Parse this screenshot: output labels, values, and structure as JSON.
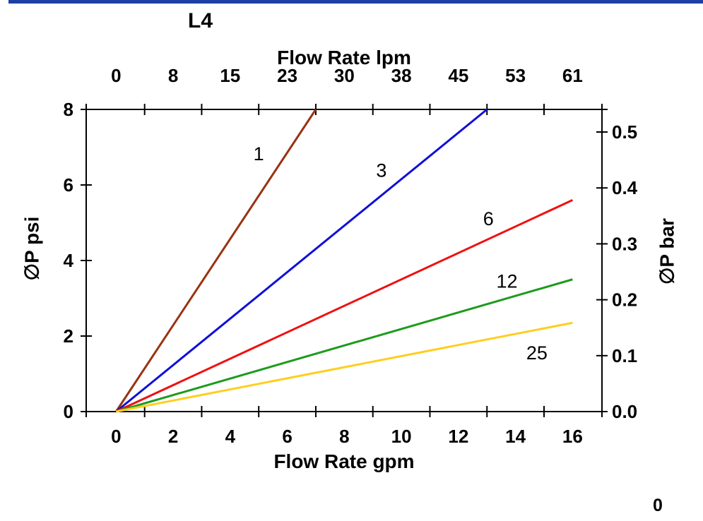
{
  "page": {
    "accent_bar_color": "#1E3FA3",
    "footer_number": "0"
  },
  "chart_data": {
    "type": "line",
    "title": "L4",
    "legend": "off",
    "grid": "off",
    "axes": {
      "top": {
        "title": "Flow Rate lpm",
        "tick_labels": [
          "0",
          "8",
          "15",
          "23",
          "30",
          "38",
          "45",
          "53",
          "61"
        ]
      },
      "bottom": {
        "title": "Flow Rate gpm",
        "tick_labels": [
          "0",
          "2",
          "4",
          "6",
          "8",
          "10",
          "12",
          "14",
          "16"
        ],
        "tick_label_values_gpm": [
          0,
          2,
          4,
          6,
          8,
          10,
          12,
          14,
          16
        ],
        "tick_marks_gpm": [
          1,
          3,
          5,
          7,
          9,
          11,
          13,
          15
        ],
        "range_gpm": [
          0,
          16
        ]
      },
      "left": {
        "title": "∅P psi",
        "tick_labels": [
          "0",
          "2",
          "4",
          "6",
          "8"
        ],
        "tick_values_psi": [
          0,
          2,
          4,
          6,
          8
        ],
        "range_psi": [
          0,
          8
        ]
      },
      "right": {
        "title": "∅P bar",
        "tick_labels": [
          "0.0",
          "0.1",
          "0.2",
          "0.3",
          "0.4",
          "0.5"
        ],
        "tick_values_bar": [
          0,
          0.1,
          0.2,
          0.3,
          0.4,
          0.5
        ]
      }
    },
    "series": [
      {
        "label": "1",
        "color": "#993311",
        "points_gpm_psi": [
          [
            0,
            0
          ],
          [
            7.0,
            8.0
          ]
        ],
        "label_pos_gpm_psi": [
          5.0,
          6.82
        ]
      },
      {
        "label": "3",
        "color": "#1010D8",
        "points_gpm_psi": [
          [
            0,
            0
          ],
          [
            13.0,
            8.0
          ]
        ],
        "label_pos_gpm_psi": [
          9.3,
          6.38
        ]
      },
      {
        "label": "6",
        "color": "#EE1111",
        "points_gpm_psi": [
          [
            0,
            0
          ],
          [
            16.0,
            5.6
          ]
        ],
        "label_pos_gpm_psi": [
          13.05,
          5.1
        ]
      },
      {
        "label": "12",
        "color": "#1D9B1D",
        "points_gpm_psi": [
          [
            0,
            0
          ],
          [
            16.0,
            3.5
          ]
        ],
        "label_pos_gpm_psi": [
          13.7,
          3.45
        ]
      },
      {
        "label": "25",
        "color": "#FFCE1F",
        "points_gpm_psi": [
          [
            0,
            0
          ],
          [
            16.0,
            2.35
          ]
        ],
        "label_pos_gpm_psi": [
          14.75,
          1.55
        ]
      }
    ]
  }
}
